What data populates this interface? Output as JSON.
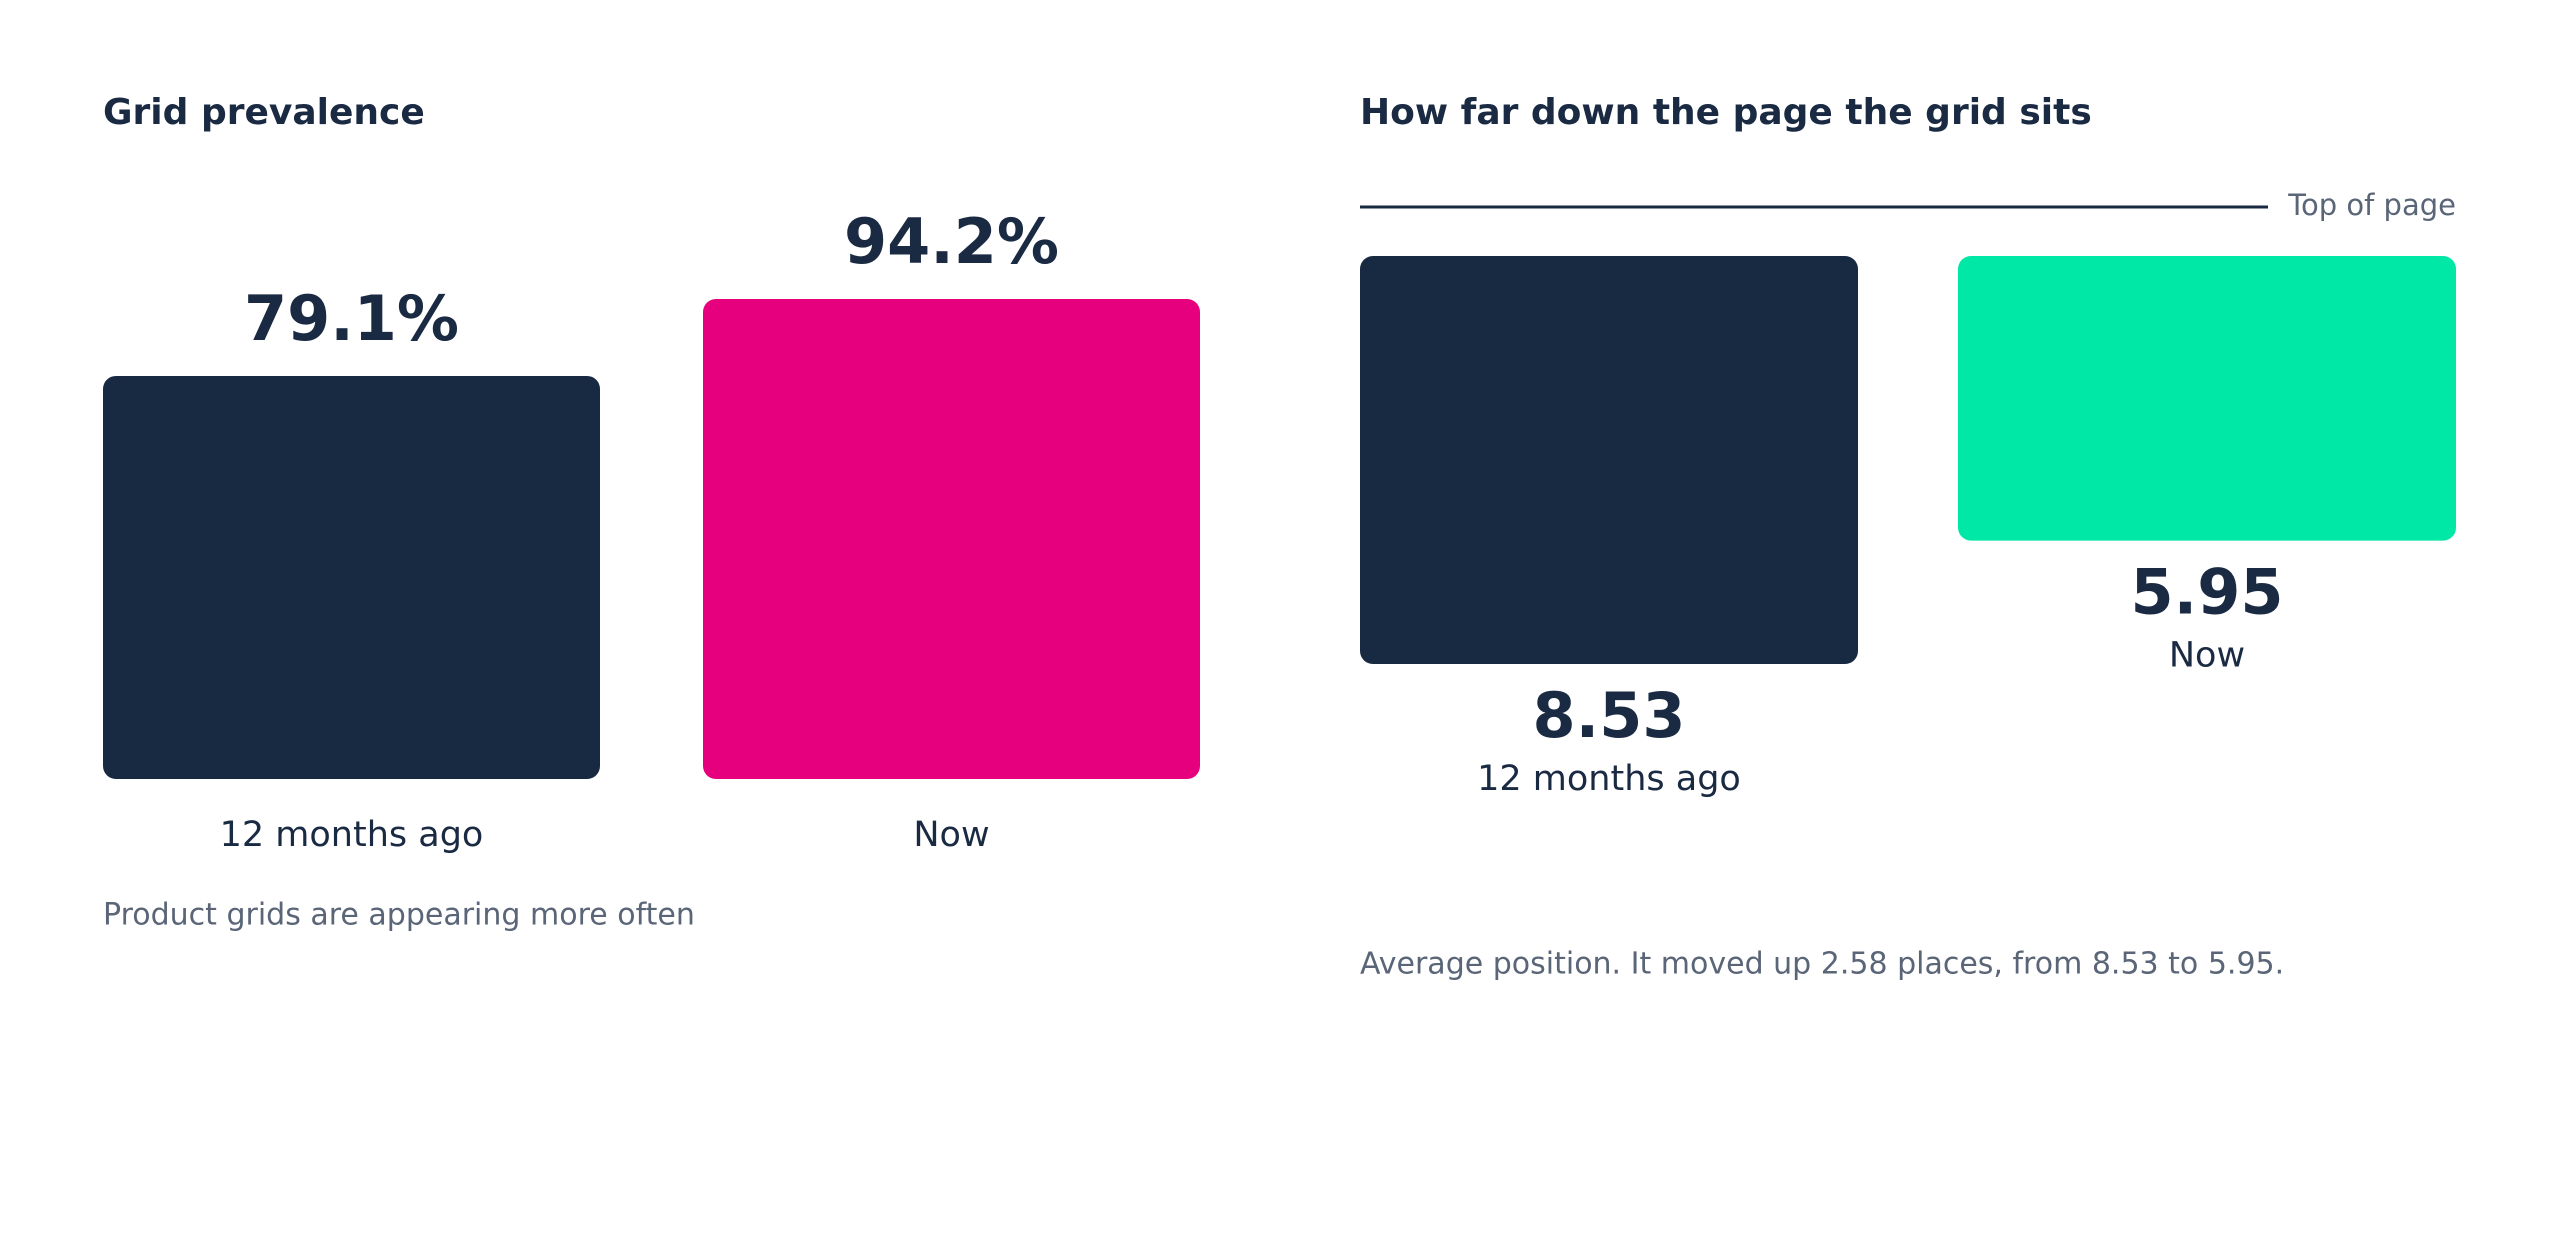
{
  "chart_data": [
    {
      "type": "bar",
      "title": "Grid prevalence",
      "categories": [
        "12 months ago",
        "Now"
      ],
      "values": [
        79.1,
        94.2
      ],
      "value_labels": [
        "79.1%",
        "94.2%"
      ],
      "colors": [
        "#182942",
        "#e6007e"
      ],
      "caption": "Product grids are appearing more often"
    },
    {
      "type": "bar",
      "title": "How far down the page the grid sits",
      "categories": [
        "12 months ago",
        "Now"
      ],
      "values": [
        8.53,
        5.95
      ],
      "colors": [
        "#182942",
        "#00e8a6"
      ],
      "y_inverted": true,
      "annotation": "Top of page",
      "caption": "Average position. It moved up 2.58 places, from 8.53 to 5.95."
    }
  ]
}
